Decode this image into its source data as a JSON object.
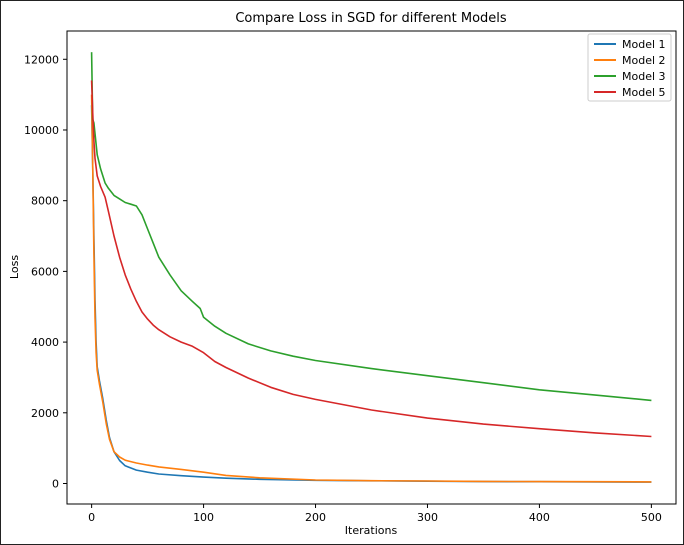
{
  "chart_data": {
    "type": "line",
    "title": "Compare Loss in SGD for different Models",
    "xlabel": "Iterations",
    "ylabel": "Loss",
    "xlim": [
      -22,
      522
    ],
    "ylim": [
      -580,
      12800
    ],
    "x_ticks": [
      0,
      100,
      200,
      300,
      400,
      500
    ],
    "y_ticks": [
      0,
      2000,
      4000,
      6000,
      8000,
      10000,
      12000
    ],
    "grid": false,
    "legend_position": "top-right",
    "series": [
      {
        "name": "Model 1",
        "color": "#1f77b4",
        "x": [
          0,
          1,
          2,
          3,
          4,
          5,
          7,
          10,
          13,
          16,
          20,
          25,
          30,
          40,
          50,
          60,
          80,
          100,
          120,
          150,
          200,
          250,
          300,
          350,
          400,
          450,
          500
        ],
        "y": [
          10700,
          9000,
          7000,
          5200,
          4000,
          3300,
          2900,
          2400,
          1800,
          1300,
          900,
          650,
          500,
          380,
          320,
          270,
          220,
          180,
          150,
          120,
          90,
          75,
          65,
          55,
          50,
          45,
          40
        ]
      },
      {
        "name": "Model 2",
        "color": "#ff7f0e",
        "x": [
          0,
          1,
          2,
          3,
          4,
          5,
          7,
          10,
          13,
          16,
          20,
          25,
          30,
          40,
          50,
          60,
          80,
          100,
          120,
          150,
          200,
          250,
          300,
          350,
          400,
          450,
          500
        ],
        "y": [
          11000,
          9000,
          6500,
          4700,
          3700,
          3200,
          2800,
          2300,
          1700,
          1250,
          900,
          750,
          660,
          580,
          520,
          470,
          400,
          320,
          230,
          160,
          100,
          80,
          70,
          60,
          55,
          50,
          45
        ]
      },
      {
        "name": "Model 3",
        "color": "#2ca02c",
        "x": [
          0,
          1,
          2,
          3,
          5,
          8,
          12,
          15,
          20,
          25,
          30,
          35,
          40,
          45,
          50,
          55,
          60,
          70,
          80,
          90,
          97,
          100,
          110,
          120,
          140,
          160,
          180,
          200,
          250,
          300,
          350,
          400,
          450,
          500
        ],
        "y": [
          12200,
          10300,
          10200,
          9900,
          9300,
          8900,
          8500,
          8350,
          8150,
          8050,
          7950,
          7900,
          7850,
          7600,
          7200,
          6800,
          6400,
          5900,
          5450,
          5150,
          4950,
          4700,
          4450,
          4250,
          3950,
          3750,
          3600,
          3480,
          3250,
          3050,
          2850,
          2650,
          2500,
          2350
        ]
      },
      {
        "name": "Model 5",
        "color": "#d62728",
        "x": [
          0,
          1,
          2,
          3,
          5,
          8,
          12,
          15,
          20,
          25,
          30,
          35,
          40,
          45,
          50,
          55,
          60,
          70,
          80,
          90,
          100,
          110,
          120,
          140,
          160,
          180,
          200,
          250,
          300,
          350,
          400,
          450,
          500
        ],
        "y": [
          11400,
          10500,
          9700,
          9200,
          8700,
          8400,
          8100,
          7700,
          7000,
          6400,
          5900,
          5500,
          5150,
          4850,
          4650,
          4480,
          4350,
          4150,
          4000,
          3880,
          3700,
          3450,
          3280,
          2980,
          2720,
          2520,
          2380,
          2080,
          1850,
          1680,
          1550,
          1430,
          1330
        ]
      }
    ]
  }
}
